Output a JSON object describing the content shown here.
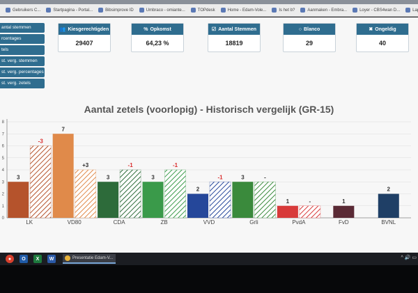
{
  "bookmarks": [
    "Gebruikers C...",
    "Startpagina - Portal...",
    "Bibsimprove ID",
    "Umbraco - omiante...",
    "TOPdesk",
    "Home - Edam-Vole...",
    "Is het b?",
    "Aanmaken - Embra...",
    "Loyer - CBS4wan D...",
    "Lapoota - Inloggen"
  ],
  "sidenav": [
    "antal stemmen",
    "rcentages",
    "tels",
    "st. verg. stemmen",
    "st. verg. percentages",
    "st. verg. zetels"
  ],
  "stats": [
    {
      "icon": "users-icon",
      "glyph": "👥",
      "label": "Kiesgerechtigden",
      "value": "29407"
    },
    {
      "icon": "percent-icon",
      "glyph": "%",
      "label": "Opkomst",
      "value": "64,23 %"
    },
    {
      "icon": "checkbox-icon",
      "glyph": "☑",
      "label": "Aantal Stemmen",
      "value": "18819"
    },
    {
      "icon": "circle-icon",
      "glyph": "○",
      "label": "Blanco",
      "value": "29"
    },
    {
      "icon": "x-icon",
      "glyph": "✖",
      "label": "Ongeldig",
      "value": "40"
    }
  ],
  "chart_title": "Aantal zetels (voorlopig) - Historisch vergelijk (GR-15)",
  "chart_data": {
    "type": "bar",
    "title": "Aantal zetels (voorlopig) - Historisch vergelijk (GR-15)",
    "categories": [
      "LK",
      "VD80",
      "CDA",
      "ZB",
      "VVD",
      "Grli",
      "PvdA",
      "FvD",
      "BVNL"
    ],
    "series": [
      {
        "values": [
          3,
          7,
          3,
          3,
          2,
          3,
          1,
          1,
          2
        ],
        "labels": [
          "3",
          "7",
          "3",
          "3",
          "2",
          "3",
          "1",
          "1",
          "2"
        ]
      },
      {
        "values": [
          6,
          4,
          4,
          4,
          3,
          3,
          1,
          null,
          null
        ],
        "labels": [
          "-3",
          "+3",
          "-1",
          "-1",
          "-1",
          "-",
          "-",
          null,
          null
        ]
      }
    ],
    "yticks": [
      0,
      1,
      2,
      3,
      4,
      5,
      6,
      7,
      8
    ],
    "ylim": [
      0,
      8
    ],
    "colors": [
      "#b5532c",
      "#e08a4a",
      "#2d6b3a",
      "#3a9a4a",
      "#25479a",
      "#3a8a3c",
      "#d83a3a",
      "#5a2a35",
      "#1f3f66"
    ],
    "change_colors": {
      "negative": "#d92b2b",
      "positive": "#2b2b2b",
      "neutral": "#2b2b2b"
    }
  },
  "taskbar": {
    "app_title": "Presentatie Edam-V...",
    "tray": "^ 🔊 ▭"
  }
}
